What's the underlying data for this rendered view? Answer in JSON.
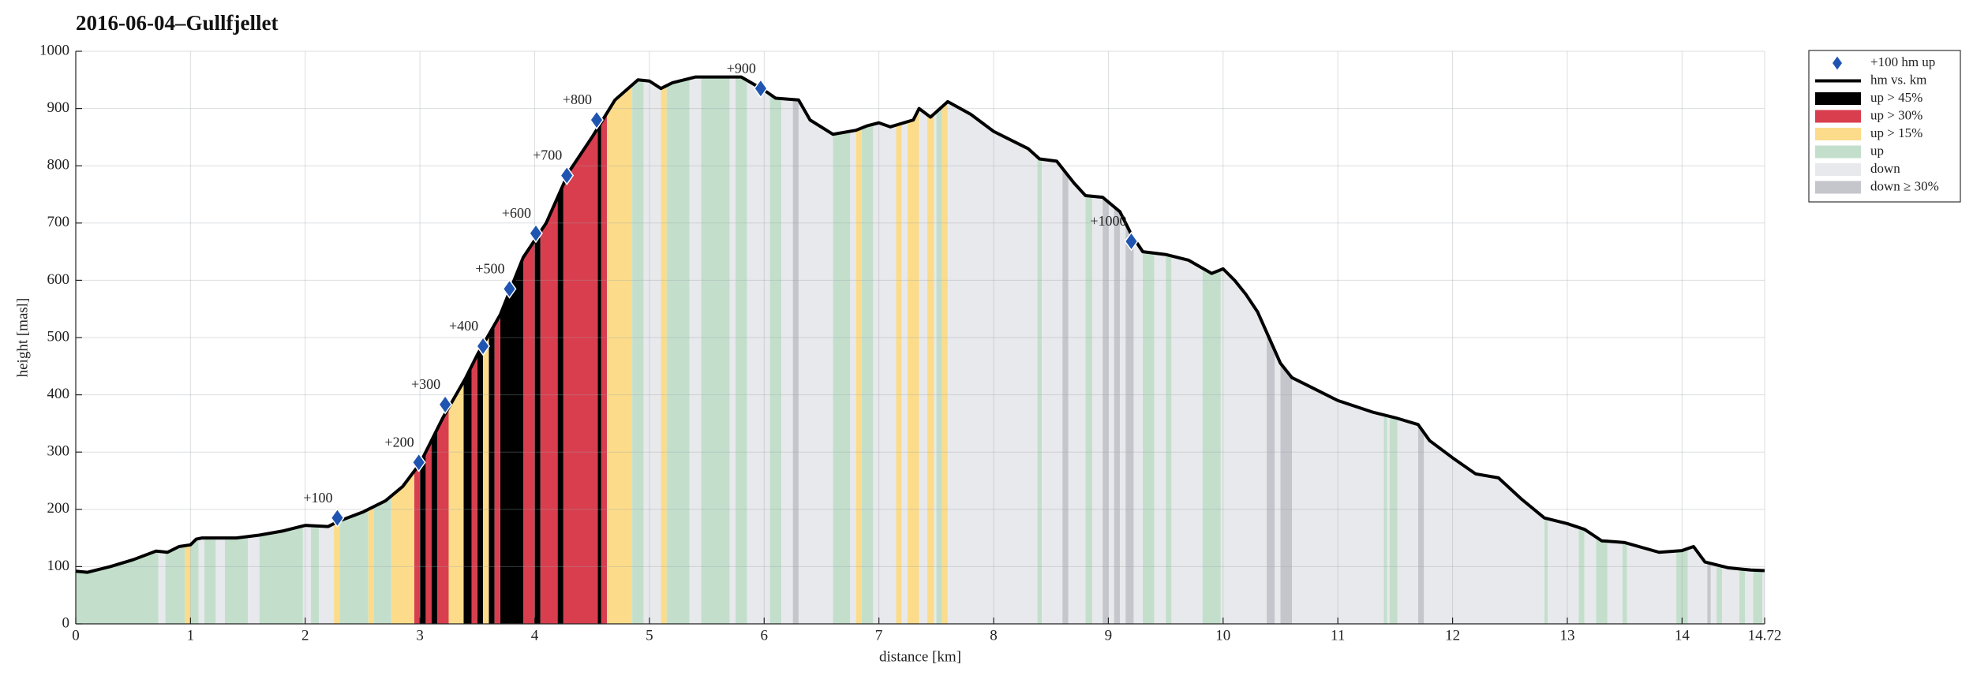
{
  "chart_data": {
    "type": "area",
    "title": "2016-06-04–Gullfjellet",
    "xlabel": "distance [km]",
    "ylabel": "height [masl]",
    "xlim": [
      0,
      14.72
    ],
    "ylim": [
      0,
      1000
    ],
    "xticks": [
      0,
      1,
      2,
      3,
      4,
      5,
      6,
      7,
      8,
      9,
      10,
      11,
      12,
      13,
      14,
      14.72
    ],
    "yticks": [
      0,
      100,
      200,
      300,
      400,
      500,
      600,
      700,
      800,
      900,
      1000
    ],
    "grid": true,
    "legend": "outside-right",
    "markers": {
      "name": "+100 hm up",
      "color": "#1f55b0",
      "x": [
        2.28,
        2.99,
        3.22,
        3.55,
        3.78,
        4.01,
        4.28,
        4.54,
        5.97,
        9.2
      ],
      "values": [
        185,
        282,
        383,
        485,
        585,
        682,
        783,
        880,
        935,
        668
      ],
      "labels": [
        "+100",
        "+200",
        "+300",
        "+400",
        "+500",
        "+600",
        "+700",
        "+800",
        "+900",
        "+1000"
      ]
    },
    "profile": {
      "name": "hm vs. km",
      "color": "#000000",
      "x": [
        0,
        0.1,
        0.3,
        0.5,
        0.7,
        0.8,
        0.9,
        1.0,
        1.05,
        1.1,
        1.4,
        1.6,
        1.8,
        2.0,
        2.2,
        2.3,
        2.5,
        2.7,
        2.85,
        3.0,
        3.2,
        3.4,
        3.5,
        3.7,
        3.9,
        4.1,
        4.3,
        4.5,
        4.7,
        4.9,
        5.0,
        5.1,
        5.2,
        5.4,
        5.6,
        5.8,
        6.0,
        6.1,
        6.3,
        6.4,
        6.6,
        6.8,
        6.9,
        7.0,
        7.1,
        7.3,
        7.35,
        7.45,
        7.6,
        7.8,
        8.0,
        8.3,
        8.4,
        8.55,
        8.7,
        8.8,
        8.95,
        9.1,
        9.2,
        9.3,
        9.5,
        9.7,
        9.9,
        10.0,
        10.1,
        10.2,
        10.3,
        10.4,
        10.5,
        10.6,
        10.8,
        11.0,
        11.3,
        11.5,
        11.7,
        11.8,
        12.0,
        12.2,
        12.4,
        12.6,
        12.8,
        13.0,
        13.15,
        13.3,
        13.5,
        13.8,
        14.0,
        14.1,
        14.2,
        14.4,
        14.6,
        14.72
      ],
      "values": [
        92,
        90,
        100,
        112,
        127,
        125,
        135,
        138,
        148,
        150,
        150,
        155,
        162,
        172,
        170,
        180,
        195,
        215,
        240,
        280,
        360,
        430,
        470,
        540,
        640,
        700,
        790,
        850,
        915,
        950,
        948,
        935,
        945,
        955,
        955,
        955,
        932,
        918,
        915,
        880,
        855,
        862,
        870,
        875,
        868,
        880,
        900,
        885,
        912,
        890,
        860,
        830,
        812,
        808,
        770,
        748,
        745,
        720,
        680,
        650,
        645,
        635,
        612,
        620,
        600,
        575,
        545,
        500,
        455,
        430,
        410,
        390,
        370,
        360,
        348,
        320,
        290,
        262,
        255,
        218,
        185,
        175,
        165,
        145,
        142,
        125,
        128,
        135,
        108,
        98,
        94,
        93
      ]
    },
    "bands": [
      {
        "name": "up > 45%",
        "color": "#000000",
        "segments": [
          [
            3.0,
            3.05
          ],
          [
            3.1,
            3.15
          ],
          [
            3.38,
            3.45
          ],
          [
            3.5,
            3.55
          ],
          [
            3.6,
            3.65
          ],
          [
            3.7,
            3.9
          ],
          [
            4.0,
            4.05
          ],
          [
            4.2,
            4.25
          ],
          [
            4.55,
            4.58
          ]
        ]
      },
      {
        "name": "up > 30%",
        "color": "#d93e4e",
        "segments": [
          [
            2.95,
            3.0
          ],
          [
            3.05,
            3.1
          ],
          [
            3.15,
            3.25
          ],
          [
            3.45,
            3.5
          ],
          [
            3.65,
            3.7
          ],
          [
            3.9,
            4.0
          ],
          [
            4.05,
            4.2
          ],
          [
            4.25,
            4.55
          ],
          [
            4.58,
            4.63
          ]
        ]
      },
      {
        "name": "up > 15%",
        "color": "#fcdc8a",
        "segments": [
          [
            0.95,
            1.0
          ],
          [
            2.25,
            2.3
          ],
          [
            2.55,
            2.6
          ],
          [
            2.75,
            2.95
          ],
          [
            3.25,
            3.38
          ],
          [
            3.55,
            3.6
          ],
          [
            4.63,
            4.85
          ],
          [
            5.1,
            5.15
          ],
          [
            6.8,
            6.85
          ],
          [
            7.15,
            7.2
          ],
          [
            7.25,
            7.35
          ],
          [
            7.42,
            7.48
          ],
          [
            7.55,
            7.6
          ]
        ]
      },
      {
        "name": "up",
        "color": "#c3dfcc",
        "segments": [
          [
            0,
            0.72
          ],
          [
            0.78,
            0.95
          ],
          [
            1.0,
            1.07
          ],
          [
            1.12,
            1.22
          ],
          [
            1.3,
            1.5
          ],
          [
            1.6,
            1.98
          ],
          [
            2.05,
            2.12
          ],
          [
            2.3,
            2.55
          ],
          [
            2.6,
            2.75
          ],
          [
            4.85,
            4.95
          ],
          [
            5.15,
            5.35
          ],
          [
            5.45,
            5.7
          ],
          [
            5.75,
            5.85
          ],
          [
            6.05,
            6.15
          ],
          [
            6.6,
            6.75
          ],
          [
            6.85,
            6.95
          ],
          [
            7.5,
            7.55
          ],
          [
            8.38,
            8.42
          ],
          [
            8.8,
            8.86
          ],
          [
            9.3,
            9.4
          ],
          [
            9.5,
            9.55
          ],
          [
            9.82,
            9.98
          ],
          [
            11.4,
            11.43
          ],
          [
            11.45,
            11.52
          ],
          [
            12.8,
            12.83
          ],
          [
            13.1,
            13.15
          ],
          [
            13.25,
            13.35
          ],
          [
            13.48,
            13.52
          ],
          [
            13.95,
            14.05
          ],
          [
            14.3,
            14.35
          ],
          [
            14.5,
            14.55
          ],
          [
            14.62,
            14.7
          ]
        ]
      },
      {
        "name": "down",
        "color": "#e8e9ec",
        "segments": [
          [
            0.72,
            0.78
          ],
          [
            1.07,
            1.12
          ],
          [
            1.22,
            1.3
          ],
          [
            1.5,
            1.6
          ],
          [
            1.98,
            2.05
          ],
          [
            2.12,
            2.25
          ],
          [
            4.95,
            5.1
          ],
          [
            5.35,
            5.45
          ],
          [
            5.7,
            5.75
          ],
          [
            5.85,
            6.05
          ],
          [
            6.15,
            6.25
          ],
          [
            6.3,
            6.6
          ],
          [
            6.75,
            6.8
          ],
          [
            6.95,
            7.15
          ],
          [
            7.2,
            7.25
          ],
          [
            7.35,
            7.42
          ],
          [
            7.48,
            7.5
          ],
          [
            7.6,
            8.38
          ],
          [
            8.42,
            8.6
          ],
          [
            8.65,
            8.8
          ],
          [
            8.86,
            8.95
          ],
          [
            9.0,
            9.05
          ],
          [
            9.1,
            9.15
          ],
          [
            9.22,
            9.3
          ],
          [
            9.4,
            9.5
          ],
          [
            9.55,
            9.82
          ],
          [
            9.98,
            10.38
          ],
          [
            10.45,
            10.5
          ],
          [
            10.6,
            11.4
          ],
          [
            11.43,
            11.45
          ],
          [
            11.52,
            11.7
          ],
          [
            11.75,
            12.8
          ],
          [
            12.83,
            13.1
          ],
          [
            13.15,
            13.25
          ],
          [
            13.35,
            13.48
          ],
          [
            13.52,
            13.95
          ],
          [
            14.05,
            14.22
          ],
          [
            14.25,
            14.3
          ],
          [
            14.35,
            14.5
          ],
          [
            14.55,
            14.62
          ],
          [
            14.7,
            14.72
          ]
        ]
      },
      {
        "name": "down ≥ 30%",
        "color": "#c4c6cc",
        "segments": [
          [
            6.25,
            6.3
          ],
          [
            8.6,
            8.65
          ],
          [
            8.95,
            9.0
          ],
          [
            9.05,
            9.1
          ],
          [
            9.15,
            9.22
          ],
          [
            10.38,
            10.45
          ],
          [
            10.5,
            10.6
          ],
          [
            11.7,
            11.75
          ],
          [
            14.22,
            14.25
          ]
        ]
      }
    ]
  }
}
